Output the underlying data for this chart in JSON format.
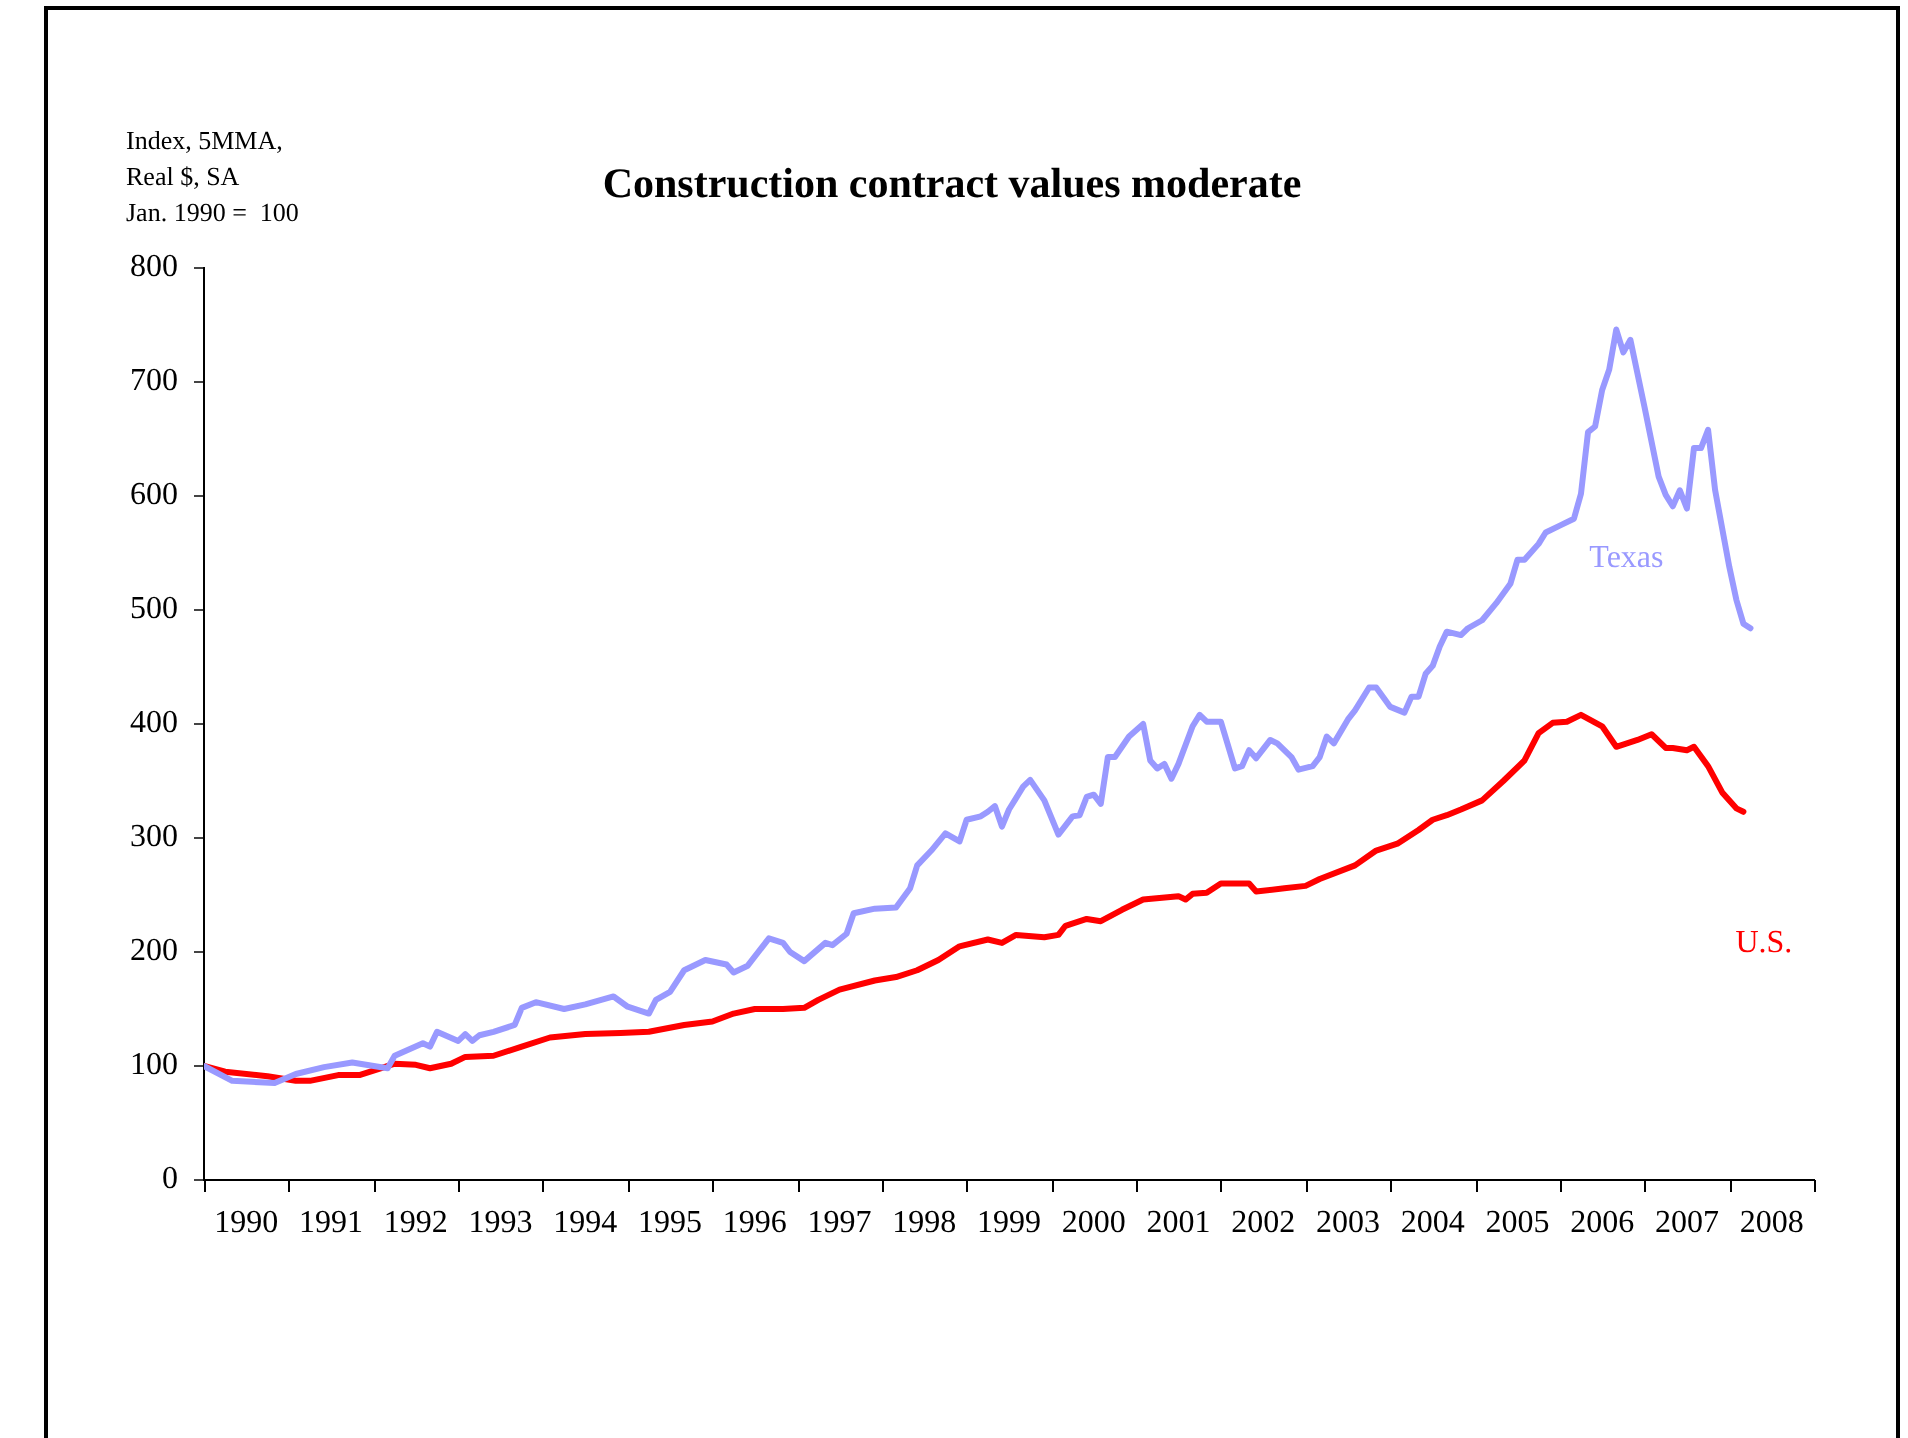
{
  "chart_data": {
    "type": "line",
    "title": "Construction contract values moderate",
    "ylabel": "Index, 5MMA,\nReal $, SA\nJan. 1990 =  100",
    "xlim": [
      "1990-01",
      "2009-01"
    ],
    "xticks": [
      {
        "value": "1990-07",
        "label": "1990"
      },
      {
        "value": "1991-07",
        "label": "1991"
      },
      {
        "value": "1992-07",
        "label": "1992"
      },
      {
        "value": "1993-07",
        "label": "1993"
      },
      {
        "value": "1994-07",
        "label": "1994"
      },
      {
        "value": "1995-07",
        "label": "1995"
      },
      {
        "value": "1996-07",
        "label": "1996"
      },
      {
        "value": "1997-07",
        "label": "1997"
      },
      {
        "value": "1998-07",
        "label": "1998"
      },
      {
        "value": "1999-07",
        "label": "1999"
      },
      {
        "value": "2000-07",
        "label": "2000"
      },
      {
        "value": "2001-07",
        "label": "2001"
      },
      {
        "value": "2002-07",
        "label": "2002"
      },
      {
        "value": "2003-07",
        "label": "2003"
      },
      {
        "value": "2004-07",
        "label": "2004"
      },
      {
        "value": "2005-07",
        "label": "2005"
      },
      {
        "value": "2006-07",
        "label": "2006"
      },
      {
        "value": "2007-07",
        "label": "2007"
      },
      {
        "value": "2008-07",
        "label": "2008"
      }
    ],
    "ylim": [
      0,
      800
    ],
    "yticks": [
      0,
      100,
      200,
      300,
      400,
      500,
      600,
      700,
      800
    ],
    "grid": false,
    "legend": false,
    "marker": "none",
    "line_style": "solid",
    "series": [
      {
        "name": "Texas",
        "color": "#9999ff",
        "x": [
          "1990-01",
          "1990-05",
          "1990-11",
          "1991-02",
          "1991-06",
          "1991-10",
          "1992-03",
          "1992-04",
          "1992-08",
          "1992-09",
          "1992-10",
          "1993-01",
          "1993-02",
          "1993-03",
          "1993-04",
          "1993-06",
          "1993-09",
          "1993-10",
          "1993-12",
          "1994-04",
          "1994-07",
          "1994-11",
          "1995-01",
          "1995-04",
          "1995-05",
          "1995-07",
          "1995-09",
          "1995-12",
          "1996-03",
          "1996-04",
          "1996-06",
          "1996-09",
          "1996-11",
          "1996-12",
          "1997-02",
          "1997-05",
          "1997-06",
          "1997-08",
          "1997-09",
          "1997-12",
          "1998-03",
          "1998-05",
          "1998-06",
          "1998-08",
          "1998-10",
          "1998-12",
          "1999-01",
          "1999-03",
          "1999-04",
          "1999-05",
          "1999-06",
          "1999-07",
          "1999-09",
          "1999-10",
          "1999-12",
          "2000-02",
          "2000-04",
          "2000-05",
          "2000-06",
          "2000-07",
          "2000-08",
          "2000-09",
          "2000-10",
          "2000-12",
          "2001-02",
          "2001-03",
          "2001-04",
          "2001-05",
          "2001-06",
          "2001-07",
          "2001-09",
          "2001-10",
          "2001-11",
          "2002-01",
          "2002-03",
          "2002-04",
          "2002-05",
          "2002-06",
          "2002-08",
          "2002-09",
          "2002-11",
          "2002-12",
          "2003-02",
          "2003-03",
          "2003-04",
          "2003-05",
          "2003-07",
          "2003-08",
          "2003-10",
          "2003-11",
          "2004-01",
          "2004-03",
          "2004-04",
          "2004-05",
          "2004-06",
          "2004-07",
          "2004-08",
          "2004-09",
          "2004-11",
          "2004-12",
          "2005-02",
          "2005-04",
          "2005-06",
          "2005-07",
          "2005-08",
          "2005-10",
          "2005-11",
          "2006-01",
          "2006-03",
          "2006-04",
          "2006-05",
          "2006-06",
          "2006-07",
          "2006-08",
          "2006-09",
          "2006-10",
          "2006-11",
          "2007-01",
          "2007-03",
          "2007-04",
          "2007-05",
          "2007-06",
          "2007-07",
          "2007-08",
          "2007-09",
          "2007-10",
          "2007-11",
          "2008-01",
          "2008-02",
          "2008-03",
          "2008-04"
        ],
        "values": [
          100,
          87,
          85,
          93,
          99,
          103,
          98,
          109,
          120,
          117,
          130,
          122,
          128,
          122,
          127,
          130,
          136,
          151,
          156,
          150,
          154,
          161,
          152,
          146,
          158,
          165,
          184,
          193,
          189,
          182,
          188,
          212,
          208,
          200,
          192,
          208,
          206,
          216,
          234,
          238,
          239,
          256,
          276,
          289,
          304,
          297,
          316,
          319,
          323,
          328,
          310,
          325,
          345,
          351,
          333,
          303,
          319,
          320,
          336,
          338,
          330,
          371,
          371,
          389,
          400,
          368,
          361,
          365,
          352,
          365,
          398,
          408,
          402,
          402,
          361,
          363,
          377,
          370,
          386,
          383,
          371,
          360,
          363,
          371,
          389,
          383,
          404,
          412,
          432,
          432,
          415,
          410,
          424,
          424,
          444,
          451,
          468,
          481,
          478,
          484,
          491,
          506,
          523,
          544,
          544,
          558,
          568,
          574,
          580,
          602,
          656,
          661,
          693,
          711,
          746,
          726,
          737,
          678,
          617,
          601,
          591,
          605,
          589,
          642,
          642,
          658,
          605,
          538,
          509,
          488,
          484
        ]
      },
      {
        "name": "U.S.",
        "color": "#ff0000",
        "x": [
          "1990-01",
          "1990-04",
          "1990-10",
          "1991-02",
          "1991-04",
          "1991-08",
          "1991-11",
          "1992-02",
          "1992-04",
          "1992-07",
          "1992-09",
          "1992-12",
          "1993-02",
          "1993-06",
          "1993-10",
          "1994-02",
          "1994-07",
          "1994-12",
          "1995-04",
          "1995-09",
          "1996-01",
          "1996-04",
          "1996-07",
          "1996-11",
          "1997-02",
          "1997-04",
          "1997-07",
          "1997-12",
          "1998-03",
          "1998-06",
          "1998-09",
          "1998-12",
          "1999-04",
          "1999-06",
          "1999-08",
          "1999-12",
          "2000-02",
          "2000-03",
          "2000-06",
          "2000-08",
          "2000-11",
          "2001-02",
          "2001-07",
          "2001-08",
          "2001-09",
          "2001-11",
          "2002-01",
          "2002-05",
          "2002-06",
          "2002-10",
          "2003-01",
          "2003-03",
          "2003-08",
          "2003-11",
          "2004-02",
          "2004-05",
          "2004-07",
          "2004-09",
          "2004-11",
          "2005-02",
          "2005-05",
          "2005-08",
          "2005-10",
          "2005-12",
          "2006-02",
          "2006-04",
          "2006-07",
          "2006-09",
          "2006-12",
          "2007-02",
          "2007-04",
          "2007-05",
          "2007-07",
          "2007-08",
          "2007-10",
          "2007-12",
          "2008-02",
          "2008-03"
        ],
        "values": [
          100,
          95,
          91,
          87,
          87,
          92,
          92,
          98,
          102,
          101,
          98,
          102,
          108,
          109,
          117,
          125,
          128,
          129,
          130,
          136,
          139,
          146,
          150,
          150,
          151,
          158,
          167,
          175,
          178,
          184,
          193,
          205,
          211,
          208,
          215,
          213,
          215,
          223,
          229,
          227,
          237,
          246,
          249,
          246,
          251,
          252,
          260,
          260,
          253,
          256,
          258,
          264,
          276,
          289,
          295,
          307,
          316,
          320,
          325,
          333,
          350,
          368,
          392,
          401,
          402,
          408,
          398,
          380,
          386,
          391,
          379,
          379,
          377,
          380,
          363,
          340,
          326,
          323
        ]
      }
    ]
  }
}
